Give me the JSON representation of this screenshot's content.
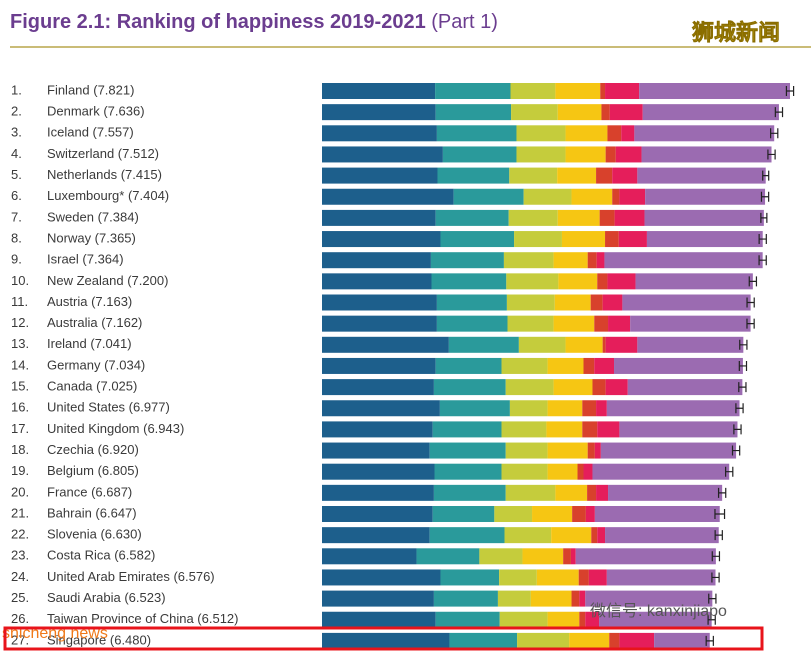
{
  "chart_data": {
    "type": "stacked-bar",
    "orientation": "horizontal",
    "title": "Figure 2.1: Ranking of happiness 2019-2021",
    "part": "(Part 1)",
    "ranks": [
      "1.",
      "2.",
      "3.",
      "4.",
      "5.",
      "6.",
      "7.",
      "8.",
      "9.",
      "10.",
      "11.",
      "12.",
      "13.",
      "14.",
      "15.",
      "16.",
      "17.",
      "18.",
      "19.",
      "20.",
      "21.",
      "22.",
      "23.",
      "24.",
      "25.",
      "26.",
      "27."
    ],
    "categories": [
      "Finland (7.821)",
      "Denmark (7.636)",
      "Iceland (7.557)",
      "Switzerland (7.512)",
      "Netherlands (7.415)",
      "Luxembourg* (7.404)",
      "Sweden (7.384)",
      "Norway (7.365)",
      "Israel (7.364)",
      "New Zealand (7.200)",
      "Austria (7.163)",
      "Australia (7.162)",
      "Ireland (7.041)",
      "Germany (7.034)",
      "Canada (7.025)",
      "United States (6.977)",
      "United Kingdom (6.943)",
      "Czechia (6.920)",
      "Belgium (6.805)",
      "France (6.687)",
      "Bahrain (6.647)",
      "Slovenia (6.630)",
      "Costa Rica (6.582)",
      "United Arab Emirates (6.576)",
      "Saudi Arabia (6.523)",
      "Taiwan Province of China (6.512)",
      "Singapore (6.480)"
    ],
    "series": [
      {
        "color": "#1d5f8c",
        "values": [
          1.89,
          1.9,
          1.92,
          2.02,
          1.93,
          2.2,
          1.9,
          1.98,
          1.82,
          1.83,
          1.92,
          1.92,
          2.12,
          1.9,
          1.87,
          1.97,
          1.85,
          1.8,
          1.88,
          1.87,
          1.85,
          1.8,
          1.58,
          1.98,
          1.87,
          1.9,
          2.13
        ]
      },
      {
        "color": "#2a9a9b",
        "values": [
          1.26,
          1.26,
          1.33,
          1.23,
          1.2,
          1.17,
          1.22,
          1.23,
          1.22,
          1.25,
          1.17,
          1.18,
          1.17,
          1.1,
          1.2,
          1.17,
          1.15,
          1.27,
          1.12,
          1.2,
          1.03,
          1.25,
          1.05,
          0.98,
          1.07,
          1.07,
          1.13
        ]
      },
      {
        "color": "#c5cc3c",
        "values": [
          0.75,
          0.78,
          0.82,
          0.82,
          0.8,
          0.8,
          0.82,
          0.8,
          0.83,
          0.87,
          0.8,
          0.77,
          0.78,
          0.77,
          0.8,
          0.63,
          0.75,
          0.7,
          0.77,
          0.83,
          0.63,
          0.78,
          0.72,
          0.63,
          0.55,
          0.8,
          0.87
        ]
      },
      {
        "color": "#f6c613",
        "values": [
          0.75,
          0.73,
          0.7,
          0.67,
          0.65,
          0.68,
          0.7,
          0.72,
          0.57,
          0.65,
          0.6,
          0.68,
          0.62,
          0.6,
          0.65,
          0.58,
          0.6,
          0.67,
          0.5,
          0.53,
          0.67,
          0.67,
          0.68,
          0.7,
          0.68,
          0.53,
          0.67
        ]
      },
      {
        "color": "#d8412c",
        "values": [
          0.08,
          0.14,
          0.23,
          0.17,
          0.27,
          0.12,
          0.25,
          0.23,
          0.15,
          0.17,
          0.2,
          0.23,
          0.05,
          0.18,
          0.22,
          0.23,
          0.25,
          0.12,
          0.1,
          0.15,
          0.23,
          0.1,
          0.13,
          0.17,
          0.13,
          0.1,
          0.17
        ]
      },
      {
        "color": "#e51e5b",
        "values": [
          0.57,
          0.55,
          0.22,
          0.43,
          0.42,
          0.43,
          0.5,
          0.47,
          0.13,
          0.47,
          0.33,
          0.37,
          0.53,
          0.33,
          0.37,
          0.18,
          0.37,
          0.1,
          0.15,
          0.2,
          0.15,
          0.13,
          0.08,
          0.3,
          0.1,
          0.23,
          0.58
        ]
      },
      {
        "color": "#9b6bb1",
        "values": [
          2.521,
          2.276,
          2.337,
          2.172,
          2.145,
          2.004,
          1.994,
          1.935,
          2.644,
          1.96,
          2.143,
          2.012,
          1.771,
          2.154,
          1.915,
          2.217,
          1.973,
          2.26,
          2.285,
          1.907,
          2.087,
          1.9,
          2.342,
          1.816,
          2.123,
          1.882,
          0.93
        ]
      }
    ],
    "errors": [
      0.06,
      0.06,
      0.06,
      0.06,
      0.05,
      0.06,
      0.05,
      0.06,
      0.06,
      0.06,
      0.06,
      0.06,
      0.06,
      0.06,
      0.06,
      0.06,
      0.06,
      0.06,
      0.06,
      0.06,
      0.08,
      0.06,
      0.06,
      0.06,
      0.06,
      0.06,
      0.06
    ],
    "watermarks": [
      "狮城新闻",
      "微信号: kanxinjiapo",
      "shicheng news"
    ]
  }
}
